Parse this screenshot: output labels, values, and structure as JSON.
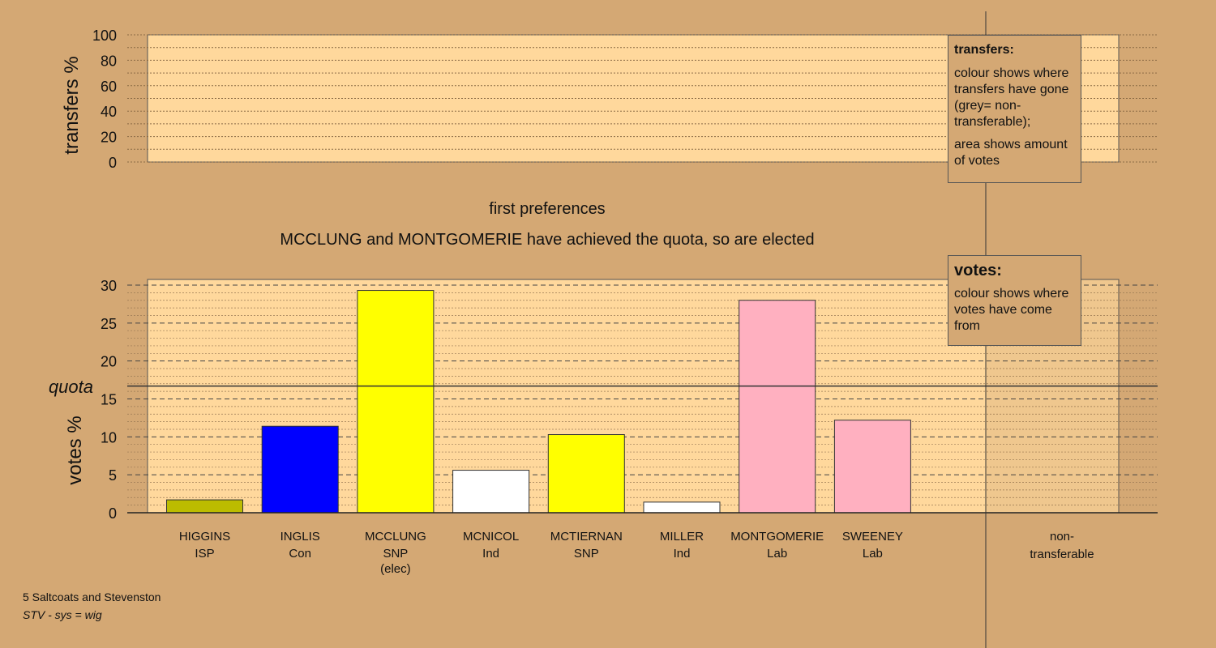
{
  "chart_data": [
    {
      "type": "bar",
      "ylabel": "transfers %",
      "ylim": [
        0,
        100
      ],
      "yticks": [
        0,
        20,
        40,
        60,
        80,
        100
      ],
      "categories": [],
      "values": []
    },
    {
      "type": "bar",
      "title": "first preferences",
      "subtitle": "MCCLUNG and MONTGOMERIE have achieved the quota, so are elected",
      "ylabel": "votes %",
      "ylim": [
        0,
        30
      ],
      "yticks": [
        0,
        5,
        10,
        15,
        20,
        25,
        30
      ],
      "grid": true,
      "quota_label": "quota",
      "quota": 16.7,
      "categories": [
        {
          "name": "HIGGINS",
          "party": "ISP",
          "note": ""
        },
        {
          "name": "INGLIS",
          "party": "Con",
          "note": ""
        },
        {
          "name": "MCCLUNG",
          "party": "SNP",
          "note": "(elec)"
        },
        {
          "name": "MCNICOL",
          "party": "Ind",
          "note": ""
        },
        {
          "name": "MCTIERNAN",
          "party": "SNP",
          "note": ""
        },
        {
          "name": "MILLER",
          "party": "Ind",
          "note": ""
        },
        {
          "name": "MONTGOMERIE",
          "party": "Lab",
          "note": ""
        },
        {
          "name": "SWEENEY",
          "party": "Lab",
          "note": ""
        }
      ],
      "values": [
        1.7,
        11.4,
        29.3,
        5.6,
        10.3,
        1.4,
        28.0,
        12.2
      ],
      "colors": [
        "#bcbc00",
        "#0000ff",
        "#ffff00",
        "#ffffff",
        "#ffff00",
        "#ffffff",
        "#ffb0c0",
        "#ffb0c0"
      ],
      "non_transferable_label": [
        "non-",
        "transferable"
      ],
      "non_transferable_value": 0
    }
  ],
  "legend_transfers": {
    "title": "transfers:",
    "line1": "colour shows where transfers have gone (grey= non-transferable);",
    "line2": "area shows amount of votes"
  },
  "legend_votes": {
    "title": "votes:",
    "line1": "colour shows where votes have come from"
  },
  "footer": {
    "ward": "5 Saltcoats and Stevenston",
    "system": "STV - sys = wig"
  }
}
